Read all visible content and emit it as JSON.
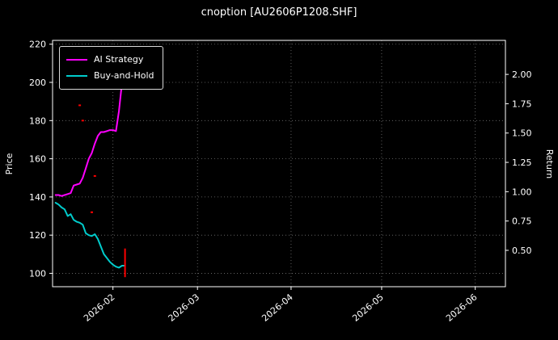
{
  "title": "cnoption [AU2606P1208.SHF]",
  "colors": {
    "background": "#000000",
    "text": "#ffffff",
    "grid": "#ffffff",
    "ai_strategy": "#ff00ff",
    "buy_and_hold": "#00cccc",
    "trade_marker": "#ff0000"
  },
  "chart_data": {
    "type": "line",
    "title": "cnoption [AU2606P1208.SHF]",
    "ylabel_left": "Price",
    "ylabel_right": "Return",
    "grid": true,
    "legend_position": "upper-left",
    "x_ticks": [
      "2026-02",
      "2026-03",
      "2026-04",
      "2026-05",
      "2026-06"
    ],
    "x_range": [
      "2026-01-12",
      "2026-06-11"
    ],
    "left_ticks": [
      100,
      120,
      140,
      160,
      180,
      200,
      220
    ],
    "left_range": [
      93,
      222
    ],
    "right_ticks": [
      0.5,
      0.75,
      1.0,
      1.25,
      1.5,
      1.75,
      2.0
    ],
    "right_range": [
      0.19,
      2.29
    ],
    "series": [
      {
        "name": "AI Strategy",
        "color": "#ff00ff",
        "axis": "left",
        "dates": [
          "2026-01-13",
          "2026-01-14",
          "2026-01-15",
          "2026-01-16",
          "2026-01-17",
          "2026-01-18",
          "2026-01-19",
          "2026-01-20",
          "2026-01-21",
          "2026-01-22",
          "2026-01-23",
          "2026-01-24",
          "2026-01-25",
          "2026-01-26",
          "2026-01-27",
          "2026-01-28",
          "2026-01-29",
          "2026-01-30",
          "2026-01-31",
          "2026-02-01",
          "2026-02-02",
          "2026-02-03",
          "2026-02-04",
          "2026-02-05"
        ],
        "values": [
          141,
          141,
          140.5,
          141,
          141.5,
          142,
          146,
          146.5,
          147,
          150,
          155,
          160,
          163,
          168,
          172,
          174,
          174,
          174.5,
          175,
          175,
          174.5,
          185,
          200,
          206
        ]
      },
      {
        "name": "Buy-and-Hold",
        "color": "#00cccc",
        "axis": "left",
        "dates": [
          "2026-01-13",
          "2026-01-14",
          "2026-01-15",
          "2026-01-16",
          "2026-01-17",
          "2026-01-18",
          "2026-01-19",
          "2026-01-20",
          "2026-01-21",
          "2026-01-22",
          "2026-01-23",
          "2026-01-24",
          "2026-01-25",
          "2026-01-26",
          "2026-01-27",
          "2026-01-28",
          "2026-01-29",
          "2026-01-30",
          "2026-01-31",
          "2026-02-01",
          "2026-02-02",
          "2026-02-03",
          "2026-02-04",
          "2026-02-05"
        ],
        "values": [
          137,
          136,
          134.5,
          133.5,
          130,
          131,
          128,
          127,
          126.5,
          125.5,
          121,
          120,
          119.5,
          120.5,
          118,
          114,
          110,
          108,
          106,
          104.5,
          103.5,
          103,
          104,
          104
        ]
      }
    ],
    "markers": {
      "color": "#ff0000",
      "points": [
        {
          "date": "2026-01-21",
          "price": 188
        },
        {
          "date": "2026-01-22",
          "price": 180
        },
        {
          "date": "2026-01-25",
          "price": 132
        },
        {
          "date": "2026-01-26",
          "price": 151
        }
      ],
      "error_bar": {
        "date": "2026-02-05",
        "low": 98,
        "high": 113
      }
    }
  }
}
